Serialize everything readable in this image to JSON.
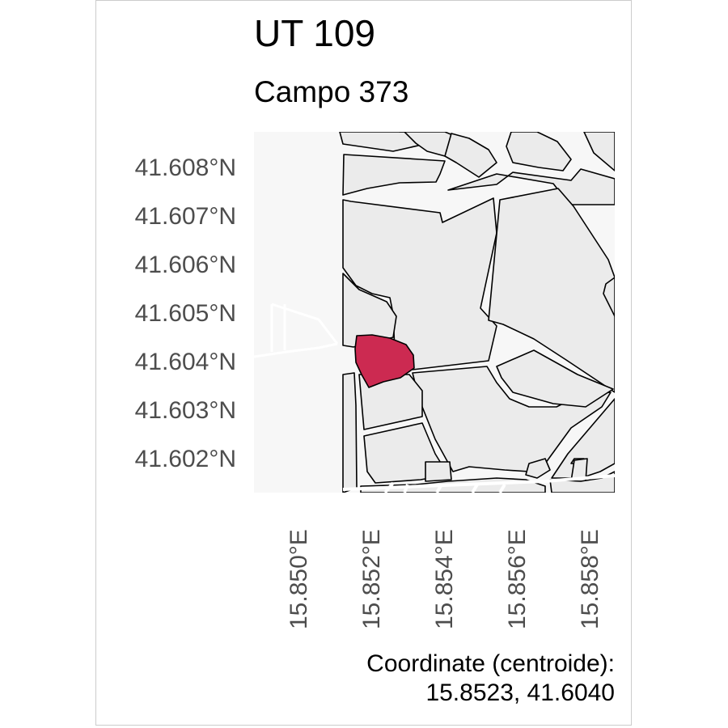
{
  "title": "UT 109",
  "subtitle": "Campo 373",
  "map": {
    "highlight_color": "#cc2a51",
    "parcel_fill": "#ebebeb",
    "background_fill": "#f7f7f7",
    "parcel_stroke": "#000000",
    "y_axis_labels": [
      "41.608°N",
      "41.607°N",
      "41.606°N",
      "41.605°N",
      "41.604°N",
      "41.603°N",
      "41.602°N"
    ],
    "x_axis_labels": [
      "15.850°E",
      "15.852°E",
      "15.854°E",
      "15.856°E",
      "15.858°E"
    ]
  },
  "caption": {
    "line1": "Coordinate (centroide):",
    "line2": "15.8523, 41.6040"
  }
}
